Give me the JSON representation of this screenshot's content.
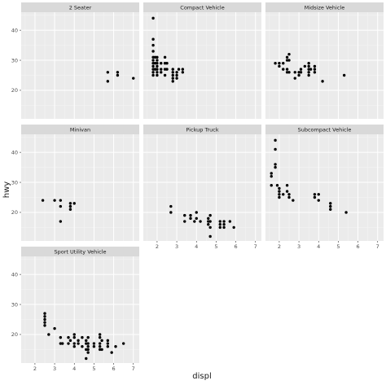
{
  "chart_data": {
    "type": "scatter",
    "faceted": true,
    "facet_grid": {
      "rows": 3,
      "cols": 3
    },
    "xlabel": "displ",
    "ylabel": "hwy",
    "xlim": [
      1.3,
      7.3
    ],
    "ylim": [
      10.5,
      46
    ],
    "x_ticks": [
      2,
      3,
      4,
      5,
      6,
      7
    ],
    "y_ticks": [
      20,
      30,
      40
    ],
    "grid": true,
    "colors": {
      "panel_bg": "#ebebeb",
      "strip_bg": "#d9d9d9",
      "grid_major": "#ffffff",
      "grid_minor": "#f5f5f5",
      "point": "#000000",
      "tick_text": "#4d4d4d",
      "strip_text": "#1a1a1a"
    },
    "facets": [
      {
        "name": "2 Seater",
        "points": [
          [
            5.7,
            26
          ],
          [
            5.7,
            23
          ],
          [
            6.2,
            26
          ],
          [
            6.2,
            25
          ],
          [
            7.0,
            24
          ]
        ]
      },
      {
        "name": "Compact Vehicle",
        "points": [
          [
            1.8,
            44
          ],
          [
            1.8,
            37
          ],
          [
            1.8,
            35
          ],
          [
            1.8,
            33
          ],
          [
            1.8,
            31
          ],
          [
            1.8,
            30
          ],
          [
            1.8,
            29
          ],
          [
            1.8,
            28
          ],
          [
            1.8,
            27
          ],
          [
            1.8,
            26
          ],
          [
            1.8,
            25
          ],
          [
            1.9,
            31
          ],
          [
            1.9,
            29
          ],
          [
            1.9,
            27
          ],
          [
            2.0,
            31
          ],
          [
            2.0,
            30
          ],
          [
            2.0,
            29
          ],
          [
            2.0,
            28
          ],
          [
            2.0,
            27
          ],
          [
            2.0,
            26
          ],
          [
            2.0,
            25
          ],
          [
            2.2,
            29
          ],
          [
            2.2,
            27
          ],
          [
            2.2,
            26
          ],
          [
            2.4,
            31
          ],
          [
            2.4,
            29
          ],
          [
            2.4,
            27
          ],
          [
            2.4,
            25
          ],
          [
            2.5,
            29
          ],
          [
            2.5,
            27
          ],
          [
            2.8,
            27
          ],
          [
            2.8,
            26
          ],
          [
            2.8,
            25
          ],
          [
            2.8,
            24
          ],
          [
            2.8,
            23
          ],
          [
            3.0,
            26
          ],
          [
            3.0,
            25
          ],
          [
            3.0,
            24
          ],
          [
            3.1,
            27
          ],
          [
            3.3,
            27
          ],
          [
            3.3,
            26
          ]
        ]
      },
      {
        "name": "Midsize Vehicle",
        "points": [
          [
            1.8,
            29
          ],
          [
            2.0,
            29
          ],
          [
            2.0,
            28
          ],
          [
            2.2,
            27
          ],
          [
            2.2,
            29
          ],
          [
            2.4,
            31
          ],
          [
            2.4,
            30
          ],
          [
            2.4,
            27
          ],
          [
            2.4,
            26
          ],
          [
            2.5,
            32
          ],
          [
            2.5,
            30
          ],
          [
            2.5,
            26
          ],
          [
            2.8,
            24
          ],
          [
            2.8,
            26
          ],
          [
            3.0,
            25
          ],
          [
            3.0,
            26
          ],
          [
            3.1,
            27
          ],
          [
            3.1,
            26
          ],
          [
            3.3,
            28
          ],
          [
            3.5,
            27
          ],
          [
            3.5,
            28
          ],
          [
            3.5,
            29
          ],
          [
            3.5,
            26
          ],
          [
            3.5,
            25
          ],
          [
            3.6,
            27
          ],
          [
            3.8,
            26
          ],
          [
            3.8,
            27
          ],
          [
            3.8,
            28
          ],
          [
            4.2,
            23
          ],
          [
            5.3,
            25
          ]
        ]
      },
      {
        "name": "Minivan",
        "points": [
          [
            2.4,
            24
          ],
          [
            3.0,
            24
          ],
          [
            3.3,
            24
          ],
          [
            3.3,
            22
          ],
          [
            3.3,
            17
          ],
          [
            3.8,
            23
          ],
          [
            3.8,
            22
          ],
          [
            3.8,
            21
          ],
          [
            4.0,
            23
          ]
        ]
      },
      {
        "name": "Pickup Truck",
        "points": [
          [
            2.7,
            22
          ],
          [
            2.7,
            20
          ],
          [
            3.4,
            19
          ],
          [
            3.4,
            17
          ],
          [
            3.7,
            19
          ],
          [
            3.7,
            18
          ],
          [
            3.9,
            17
          ],
          [
            4.0,
            18
          ],
          [
            4.0,
            20
          ],
          [
            4.2,
            17
          ],
          [
            4.6,
            18
          ],
          [
            4.6,
            17
          ],
          [
            4.6,
            16
          ],
          [
            4.7,
            19
          ],
          [
            4.7,
            17
          ],
          [
            4.7,
            15
          ],
          [
            4.7,
            12
          ],
          [
            5.2,
            17
          ],
          [
            5.2,
            16
          ],
          [
            5.2,
            15
          ],
          [
            5.4,
            17
          ],
          [
            5.4,
            16
          ],
          [
            5.4,
            15
          ],
          [
            5.7,
            17
          ],
          [
            5.9,
            15
          ]
        ]
      },
      {
        "name": "Subcompact Vehicle",
        "points": [
          [
            1.6,
            33
          ],
          [
            1.6,
            32
          ],
          [
            1.6,
            29
          ],
          [
            1.8,
            36
          ],
          [
            1.8,
            35
          ],
          [
            1.8,
            44
          ],
          [
            1.8,
            41
          ],
          [
            1.9,
            29
          ],
          [
            2.0,
            28
          ],
          [
            2.0,
            27
          ],
          [
            2.0,
            26
          ],
          [
            2.0,
            25
          ],
          [
            2.2,
            26
          ],
          [
            2.4,
            29
          ],
          [
            2.4,
            27
          ],
          [
            2.5,
            26
          ],
          [
            2.5,
            25
          ],
          [
            2.7,
            24
          ],
          [
            3.8,
            26
          ],
          [
            3.8,
            25
          ],
          [
            4.0,
            26
          ],
          [
            4.0,
            24
          ],
          [
            4.6,
            23
          ],
          [
            4.6,
            22
          ],
          [
            4.6,
            21
          ],
          [
            5.4,
            20
          ]
        ]
      },
      {
        "name": "Sport Utility Vehicle",
        "points": [
          [
            2.5,
            27
          ],
          [
            2.5,
            26
          ],
          [
            2.5,
            25
          ],
          [
            2.5,
            24
          ],
          [
            2.5,
            23
          ],
          [
            2.7,
            20
          ],
          [
            3.0,
            22
          ],
          [
            3.3,
            19
          ],
          [
            3.3,
            17
          ],
          [
            3.4,
            17
          ],
          [
            3.7,
            19
          ],
          [
            3.7,
            17
          ],
          [
            3.8,
            18
          ],
          [
            4.0,
            20
          ],
          [
            4.0,
            19
          ],
          [
            4.0,
            17
          ],
          [
            4.0,
            16
          ],
          [
            4.2,
            18
          ],
          [
            4.2,
            17
          ],
          [
            4.4,
            19
          ],
          [
            4.4,
            16
          ],
          [
            4.6,
            18
          ],
          [
            4.6,
            17
          ],
          [
            4.6,
            15
          ],
          [
            4.6,
            12
          ],
          [
            4.7,
            19
          ],
          [
            4.7,
            17
          ],
          [
            4.7,
            16
          ],
          [
            4.7,
            15
          ],
          [
            4.7,
            14
          ],
          [
            5.0,
            17
          ],
          [
            5.0,
            16
          ],
          [
            5.3,
            20
          ],
          [
            5.3,
            19
          ],
          [
            5.3,
            17
          ],
          [
            5.3,
            16
          ],
          [
            5.3,
            15
          ],
          [
            5.4,
            18
          ],
          [
            5.4,
            15
          ],
          [
            5.7,
            18
          ],
          [
            5.7,
            17
          ],
          [
            5.7,
            16
          ],
          [
            5.9,
            14
          ],
          [
            6.1,
            16
          ],
          [
            6.5,
            17
          ]
        ]
      }
    ]
  }
}
